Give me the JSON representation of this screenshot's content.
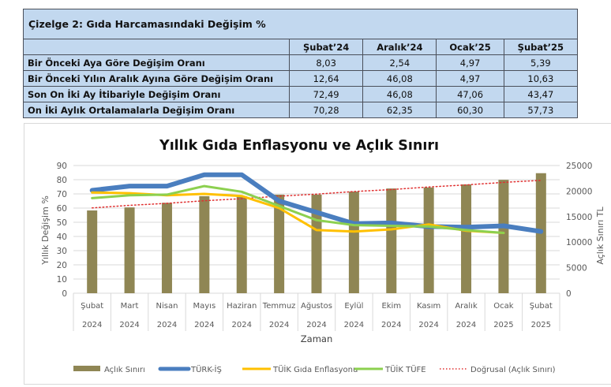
{
  "table": {
    "title": "Çizelge 2: Gıda Harcamasındaki Değişim %",
    "columns": [
      "Şubat’24",
      "Aralık’24",
      "Ocak’25",
      "Şubat’25"
    ],
    "rows": [
      {
        "label": "Bir Önceki Aya Göre Değişim Oranı",
        "values": [
          "8,03",
          "2,54",
          "4,97",
          "5,39"
        ]
      },
      {
        "label": "Bir Önceki Yılın Aralık Ayına Göre Değişim Oranı",
        "values": [
          "12,64",
          "46,08",
          "4,97",
          "10,63"
        ]
      },
      {
        "label": "Son On İki Ay İtibariyle Değişim Oranı",
        "values": [
          "72,49",
          "46,08",
          "47,06",
          "43,47"
        ]
      },
      {
        "label": "On İki Aylık Ortalamalarla Değişim Oranı",
        "values": [
          "70,28",
          "62,35",
          "60,30",
          "57,73"
        ]
      }
    ]
  },
  "chart_data": {
    "type": "bar+line",
    "title": "Yıllık Gıda Enflasyonu ve Açlık Sınırı",
    "xlabel": "Zaman",
    "ylabel": "Yıllık Değişim %",
    "y2label": "Açlık Sınırı TL",
    "ylim": [
      0,
      90
    ],
    "y2lim": [
      0,
      25000
    ],
    "yticks": [
      "0",
      "10",
      "20",
      "30",
      "40",
      "50",
      "60",
      "70",
      "80",
      "90"
    ],
    "y2ticks": [
      "0",
      "5000",
      "10000",
      "15000",
      "20000",
      "25000"
    ],
    "grid": true,
    "legend_position": "bottom",
    "categories": [
      {
        "month": "Şubat",
        "year": "2024"
      },
      {
        "month": "Mart",
        "year": "2024"
      },
      {
        "month": "Nisan",
        "year": "2024"
      },
      {
        "month": "Mayıs",
        "year": "2024"
      },
      {
        "month": "Haziran",
        "year": "2024"
      },
      {
        "month": "Temmuz",
        "year": "2024"
      },
      {
        "month": "Ağustos",
        "year": "2024"
      },
      {
        "month": "Eylül",
        "year": "2024"
      },
      {
        "month": "Ekim",
        "year": "2024"
      },
      {
        "month": "Kasım",
        "year": "2024"
      },
      {
        "month": "Aralık",
        "year": "2024"
      },
      {
        "month": "Ocak",
        "year": "2025"
      },
      {
        "month": "Şubat",
        "year": "2025"
      }
    ],
    "series": [
      {
        "name": "Açlık Sınırı",
        "type": "bar",
        "axis": "right",
        "color": "#8f8654",
        "values": [
          16200,
          16800,
          17700,
          19000,
          19000,
          19300,
          19300,
          19900,
          20500,
          20700,
          21300,
          22200,
          23500
        ]
      },
      {
        "name": "TÜRK-İŞ",
        "type": "line",
        "axis": "left",
        "color": "#4a7ebf",
        "width": 6,
        "values": [
          72.5,
          75.5,
          75.5,
          83.5,
          83.5,
          65,
          57,
          49,
          49.5,
          47,
          46.5,
          47.5,
          43.5
        ]
      },
      {
        "name": "TÜİK Gıda Enflasyonu",
        "type": "line",
        "axis": "left",
        "color": "#ffc000",
        "width": 3,
        "values": [
          71,
          70.5,
          69,
          70,
          68.5,
          60,
          44.5,
          43.5,
          45,
          48.5,
          44,
          42.5,
          null
        ]
      },
      {
        "name": "TÜİK TÜFE",
        "type": "line",
        "axis": "left",
        "color": "#8cd04f",
        "width": 3,
        "values": [
          67,
          69,
          69.5,
          75.5,
          71.5,
          61.5,
          51.5,
          48,
          47.5,
          47,
          44.5,
          42.5,
          null
        ]
      },
      {
        "name": "Doğrusal (Açlık Sınırı)",
        "type": "trendline",
        "axis": "right",
        "color": "#e03030",
        "dash": "dotted",
        "values": [
          16700,
          17200,
          17600,
          18100,
          18500,
          19000,
          19400,
          19900,
          20300,
          20800,
          21200,
          21700,
          22100
        ]
      }
    ]
  }
}
